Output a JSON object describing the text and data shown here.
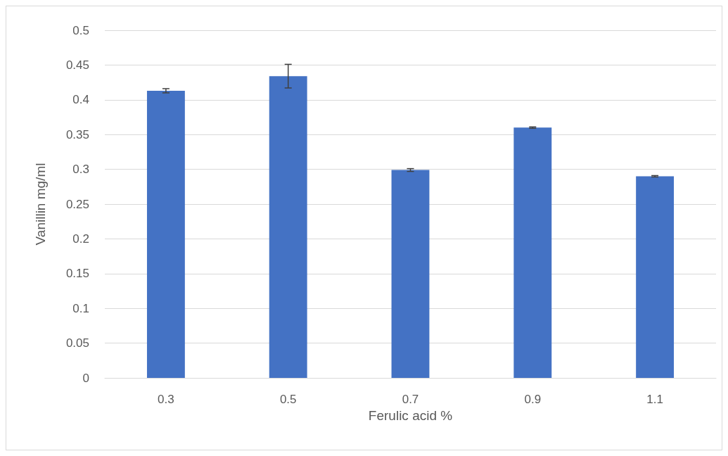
{
  "chart_data": {
    "type": "bar",
    "xlabel": "Ferulic acid %",
    "ylabel": "Vanillin mg/ml",
    "categories": [
      "0.3",
      "0.5",
      "0.7",
      "0.9",
      "1.1"
    ],
    "values": [
      0.413,
      0.434,
      0.299,
      0.36,
      0.29
    ],
    "errors": [
      0.003,
      0.017,
      0.002,
      0.001,
      0.001
    ],
    "color": "#4472c4",
    "ylim": [
      0,
      0.5
    ],
    "yticks": [
      0,
      0.05,
      0.1,
      0.15,
      0.2,
      0.25,
      0.3,
      0.35,
      0.4,
      0.45,
      0.5
    ],
    "grid": "y"
  }
}
